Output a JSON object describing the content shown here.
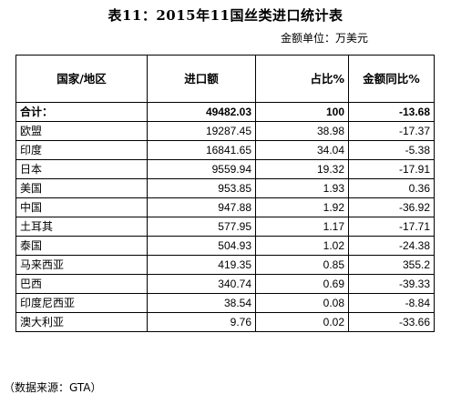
{
  "title": "表11：2015年11国丝类进口统计表",
  "unit": "金额单位：万美元",
  "headers": {
    "country": "国家/地区",
    "import": "进口额",
    "share": "占比%",
    "yoy": "金额同比%"
  },
  "total": {
    "country": "合计：",
    "import": "49482.03",
    "share": "100",
    "yoy": "-13.68"
  },
  "rows": [
    {
      "country": "欧盟",
      "import": "19287.45",
      "share": "38.98",
      "yoy": "-17.37"
    },
    {
      "country": "印度",
      "import": "16841.65",
      "share": "34.04",
      "yoy": "-5.38"
    },
    {
      "country": "日本",
      "import": "9559.94",
      "share": "19.32",
      "yoy": "-17.91"
    },
    {
      "country": "美国",
      "import": "953.85",
      "share": "1.93",
      "yoy": "0.36"
    },
    {
      "country": "中国",
      "import": "947.88",
      "share": "1.92",
      "yoy": "-36.92"
    },
    {
      "country": "土耳其",
      "import": "577.95",
      "share": "1.17",
      "yoy": "-17.71"
    },
    {
      "country": "泰国",
      "import": "504.93",
      "share": "1.02",
      "yoy": "-24.38"
    },
    {
      "country": "马来西亚",
      "import": "419.35",
      "share": "0.85",
      "yoy": "355.2"
    },
    {
      "country": "巴西",
      "import": "340.74",
      "share": "0.69",
      "yoy": "-39.33"
    },
    {
      "country": "印度尼西亚",
      "import": "38.54",
      "share": "0.08",
      "yoy": "-8.84"
    },
    {
      "country": "澳大利亚",
      "import": "9.76",
      "share": "0.02",
      "yoy": "-33.66"
    }
  ],
  "source": "（数据来源：GTA）"
}
